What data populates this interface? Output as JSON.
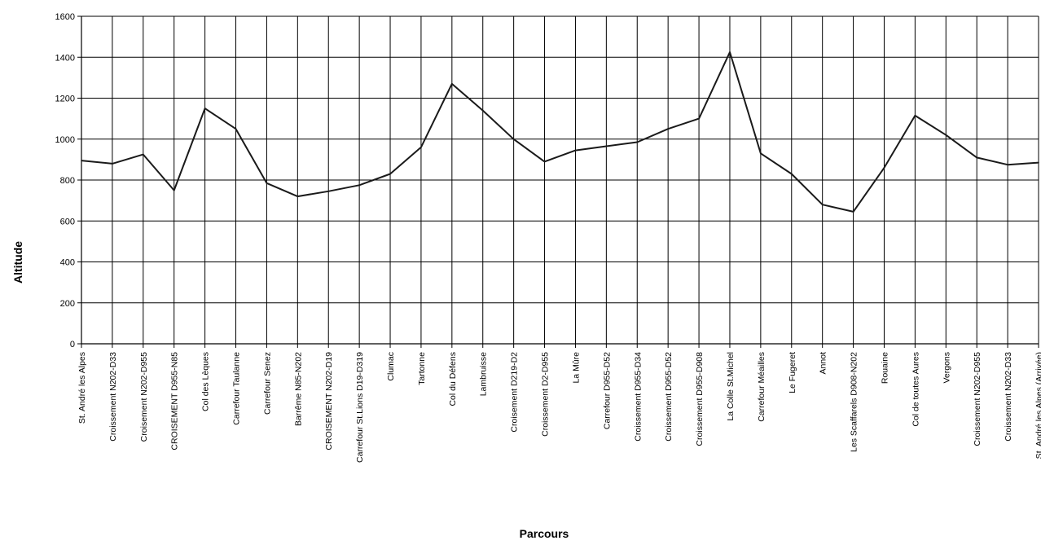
{
  "chart_data": {
    "type": "line",
    "xlabel": "Parcours",
    "ylabel": "Altitude",
    "ylim": [
      0,
      1600
    ],
    "yticks": [
      0,
      200,
      400,
      600,
      800,
      1000,
      1200,
      1400,
      1600
    ],
    "grid": true,
    "line_color": "#1a1a1a",
    "categories": [
      "St. André les Alpes",
      "Croissement N202-D33",
      "Croisement N202-D955",
      "CROISEMENT D955-N85",
      "Col des Lèques",
      "Carrefour Taulanne",
      "Carrefour Senez",
      "Barrême N85-N202",
      "CROISEMENT N202-D19",
      "Carrefour St.Lions D19-D319",
      "Clumac",
      "Tartonne",
      "Col du Défens",
      "Lambruisse",
      "Croisement D219-D2",
      "Croissement D2-D955",
      "La Mûre",
      "Carrefour D955-D52",
      "Croissement D955-D34",
      "Croissement D955-D52",
      "Croissement D955-D908",
      "La Colle St.Michel",
      "Carrefour Méailles",
      "Le Fugeret",
      "Annot",
      "Les Scaffarels D908-N202",
      "Rouaine",
      "Col de toutes Aures",
      "Vergons",
      "Croissement N202-D955",
      "Croissement N202-D33",
      "St. André les Alpes (Arrivée)"
    ],
    "values": [
      895,
      880,
      925,
      750,
      1150,
      1050,
      785,
      720,
      745,
      775,
      830,
      960,
      1270,
      1140,
      1000,
      890,
      945,
      965,
      985,
      1050,
      1100,
      1425,
      930,
      830,
      680,
      645,
      860,
      1115,
      1020,
      910,
      875,
      885
    ]
  }
}
